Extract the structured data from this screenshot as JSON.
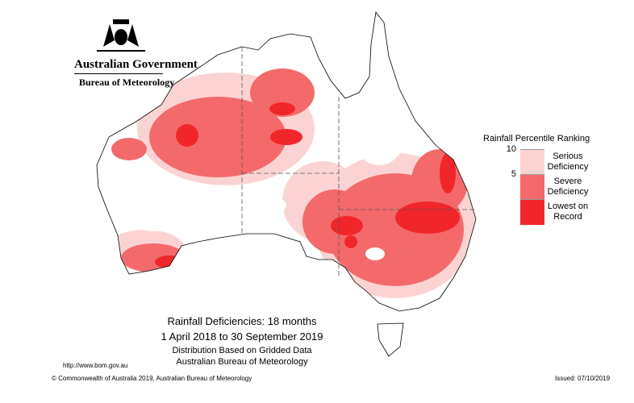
{
  "header": {
    "agency": "Australian Government",
    "bureau": "Bureau of Meteorology"
  },
  "legend": {
    "title": "Rainfall Percentile Ranking",
    "ticks": [
      "10",
      "5"
    ],
    "items": [
      {
        "label": "Serious Deficiency",
        "color": "#fcd3d3"
      },
      {
        "label": "Severe Deficiency",
        "color": "#f46a6a"
      },
      {
        "label": "Lowest on Record",
        "color": "#f0262a"
      }
    ]
  },
  "map": {
    "title": "Rainfall Deficiencies: 18 months",
    "period": "1 April 2018 to 30 September 2019",
    "method": "Distribution Based on Gridded Data",
    "source": "Australian Bureau of Meteorology"
  },
  "footer": {
    "url": "http://www.bom.gov.au",
    "copyright": "© Commonwealth of Australia 2019, Australian Bureau of Meteorology",
    "issued": "Issued: 07/10/2019"
  }
}
